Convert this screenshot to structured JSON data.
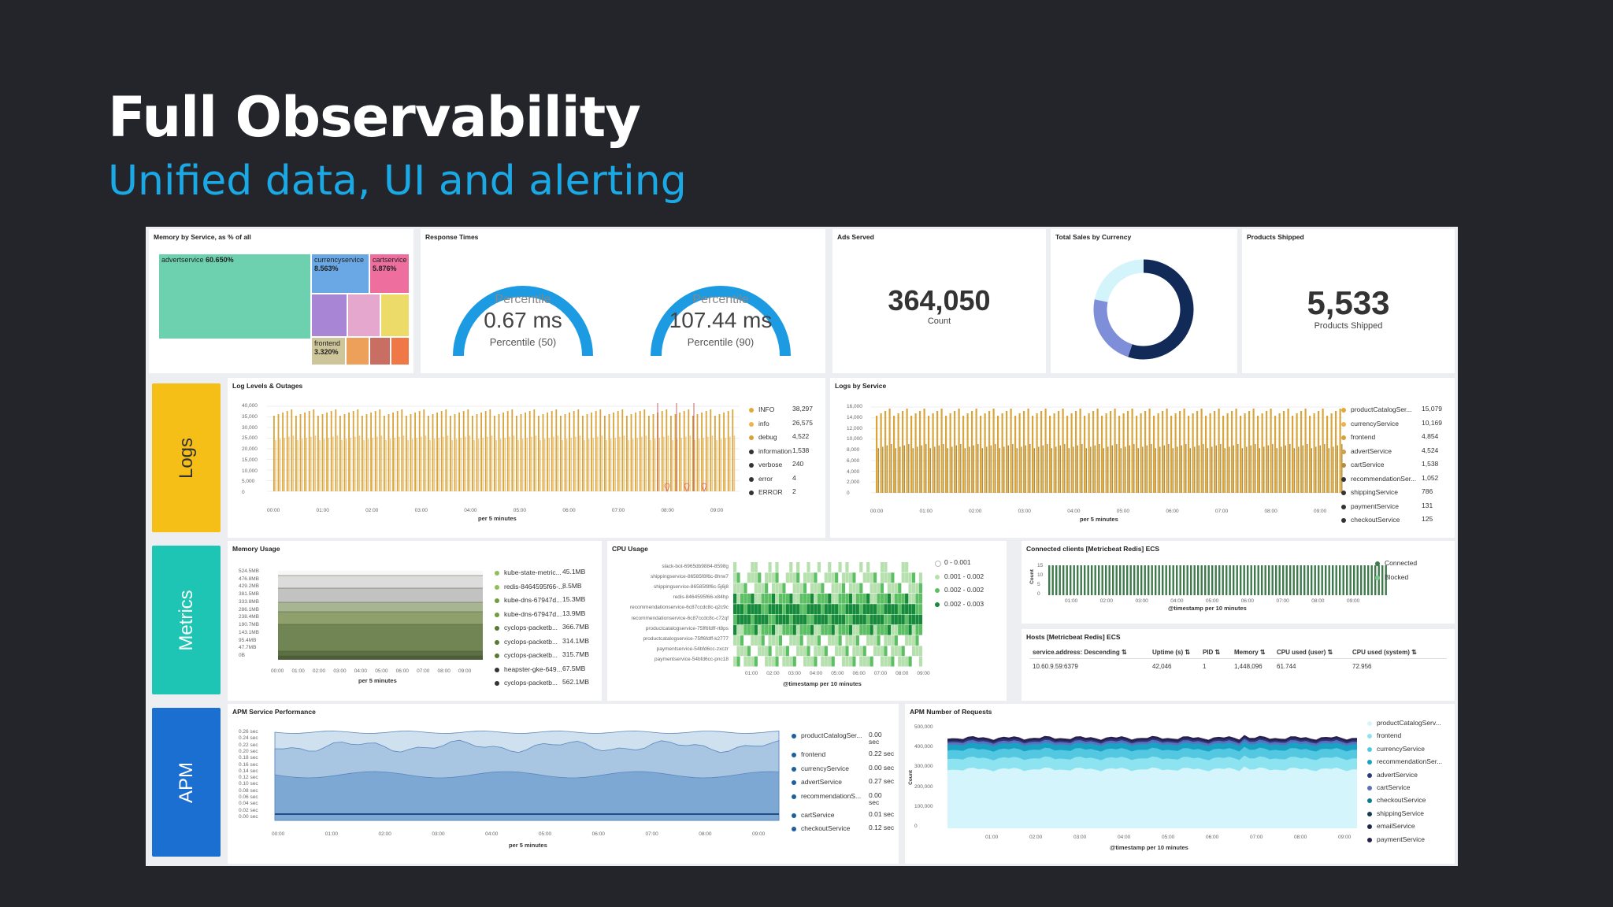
{
  "slide": {
    "title": "Full Observability",
    "subtitle": "Unified data, UI and alerting"
  },
  "sections": {
    "logs": "Logs",
    "metrics": "Metrics",
    "apm": "APM"
  },
  "colors": {
    "logs": "#f5bf18",
    "metrics": "#1ec4b4",
    "apm": "#1a6fd1",
    "gauge": "#1c9be2",
    "accent": "#1ba9e6"
  },
  "memory_by_service": {
    "title": "Memory by Service, as % of all",
    "tiles": [
      {
        "name": "advertservice",
        "value": "60.650%",
        "color": "#6dd1b0"
      },
      {
        "name": "currencyservice",
        "value": "8.563%",
        "color": "#69a8e4"
      },
      {
        "name": "cartservice",
        "value": "5.876%",
        "color": "#ee6f9d"
      },
      {
        "name": "frontend",
        "value": "3.320%",
        "color": "#cfc59a"
      }
    ]
  },
  "response_times": {
    "title": "Response Times",
    "gauges": [
      {
        "label": "Percentile",
        "value": "0.67 ms",
        "sub": "Percentile (50)"
      },
      {
        "label": "Percentile",
        "value": "107.44 ms",
        "sub": "Percentile (90)"
      }
    ]
  },
  "ads_served": {
    "title": "Ads Served",
    "value": "364,050",
    "label": "Count"
  },
  "total_sales": {
    "title": "Total Sales by Currency"
  },
  "products_shipped": {
    "title": "Products Shipped",
    "value": "5,533",
    "label": "Products Shipped"
  },
  "log_levels": {
    "title": "Log Levels & Outages",
    "xlabel": "per 5 minutes",
    "yticks": [
      "40,000",
      "35,000",
      "30,000",
      "25,000",
      "20,000",
      "15,000",
      "10,000",
      "5,000",
      "0"
    ],
    "xticks": [
      "00:00",
      "01:00",
      "02:00",
      "03:00",
      "04:00",
      "05:00",
      "06:00",
      "07:00",
      "08:00",
      "09:00"
    ],
    "legend": [
      {
        "label": "INFO",
        "value": "38,297",
        "color": "#e2a93a"
      },
      {
        "label": "info",
        "value": "26,575",
        "color": "#e8b550"
      },
      {
        "label": "debug",
        "value": "4,522",
        "color": "#d7a13a"
      },
      {
        "label": "information",
        "value": "1,538",
        "color": "#333333"
      },
      {
        "label": "verbose",
        "value": "240",
        "color": "#333333"
      },
      {
        "label": "error",
        "value": "4",
        "color": "#333333"
      },
      {
        "label": "ERROR",
        "value": "2",
        "color": "#333333"
      }
    ]
  },
  "logs_by_service": {
    "title": "Logs by Service",
    "xlabel": "per 5 minutes",
    "yticks": [
      "16,000",
      "14,000",
      "12,000",
      "10,000",
      "8,000",
      "6,000",
      "4,000",
      "2,000",
      "0"
    ],
    "xticks": [
      "00:00",
      "01:00",
      "02:00",
      "03:00",
      "04:00",
      "05:00",
      "06:00",
      "07:00",
      "08:00",
      "09:00"
    ],
    "legend": [
      {
        "label": "productCatalogSer...",
        "value": "15,079",
        "color": "#e2a93a"
      },
      {
        "label": "currencyService",
        "value": "10,169",
        "color": "#e8b550"
      },
      {
        "label": "frontend",
        "value": "4,854",
        "color": "#d7a13a"
      },
      {
        "label": "advertService",
        "value": "4,524",
        "color": "#caa04a"
      },
      {
        "label": "cartService",
        "value": "1,538",
        "color": "#b58c3a"
      },
      {
        "label": "recommendationSer...",
        "value": "1,052",
        "color": "#333333"
      },
      {
        "label": "shippingService",
        "value": "786",
        "color": "#333333"
      },
      {
        "label": "paymentService",
        "value": "131",
        "color": "#333333"
      },
      {
        "label": "checkoutService",
        "value": "125",
        "color": "#333333"
      }
    ]
  },
  "memory_usage": {
    "title": "Memory Usage",
    "xlabel": "per 5 minutes",
    "yticks": [
      "524.5MB",
      "476.8MB",
      "429.2MB",
      "381.5MB",
      "333.8MB",
      "286.1MB",
      "238.4MB",
      "190.7MB",
      "143.1MB",
      "95.4MB",
      "47.7MB",
      "0B"
    ],
    "xticks": [
      "00:00",
      "01:00",
      "02:00",
      "03:00",
      "04:00",
      "05:00",
      "06:00",
      "07:00",
      "08:00",
      "09:00"
    ],
    "legend": [
      {
        "label": "kube-state-metric...",
        "value": "45.1MB",
        "color": "#8fbf5a"
      },
      {
        "label": "redis-8464595f66-...",
        "value": "8.5MB",
        "color": "#8fbf5a"
      },
      {
        "label": "kube-dns-67947d...",
        "value": "15.3MB",
        "color": "#6e9e3e"
      },
      {
        "label": "kube-dns-67947d...",
        "value": "13.9MB",
        "color": "#6e9e3e"
      },
      {
        "label": "cyclops-packetb...",
        "value": "366.7MB",
        "color": "#557a30"
      },
      {
        "label": "cyclops-packetb...",
        "value": "314.1MB",
        "color": "#557a30"
      },
      {
        "label": "cyclops-packetb...",
        "value": "315.7MB",
        "color": "#557a30"
      },
      {
        "label": "heapster-gke-649...",
        "value": "67.5MB",
        "color": "#333333"
      },
      {
        "label": "cyclops-packetb...",
        "value": "562.1MB",
        "color": "#333333"
      }
    ]
  },
  "cpu_usage": {
    "title": "CPU Usage",
    "xlabel": "@timestamp per 10 minutes",
    "rows": [
      "slack-bot-6965db9884-8598g",
      "shippingservice-86585f8f6c-8hrw7",
      "shippingservice-86585f8f6c-5j6j8",
      "redis-8464595f66-x84hp",
      "recommendationservice-6c87ccdc8c-q2c9c",
      "recommendationservice-6c87ccdc8c-c72qf",
      "productcatalogservice-75ff6fdff-rt8ps",
      "productcatalogservice-75ff6fdff-k2777",
      "paymentservice-54bfd6cc-zxczr",
      "paymentservice-54bfd6cc-pnc18"
    ],
    "xticks": [
      "01:00",
      "02:00",
      "03:00",
      "04:00",
      "05:00",
      "06:00",
      "07:00",
      "08:00",
      "09:00"
    ],
    "legend": [
      {
        "label": "0 - 0.001",
        "color": "#ffffff"
      },
      {
        "label": "0.001 - 0.002",
        "color": "#b6e0ae"
      },
      {
        "label": "0.002 - 0.002",
        "color": "#5cbf64"
      },
      {
        "label": "0.002 - 0.003",
        "color": "#168a3a"
      }
    ]
  },
  "connected_clients": {
    "title": "Connected clients [Metricbeat Redis] ECS",
    "xlabel": "@timestamp per 10 minutes",
    "ylabel": "Count",
    "yticks": [
      "15",
      "10",
      "5",
      "0"
    ],
    "xticks": [
      "01:00",
      "02:00",
      "03:00",
      "04:00",
      "05:00",
      "06:00",
      "07:00",
      "08:00",
      "09:00"
    ],
    "legend": [
      {
        "label": "Connected",
        "color": "#3f7a4d"
      },
      {
        "label": "Blocked",
        "color": "#7ccb8f"
      }
    ]
  },
  "hosts": {
    "title": "Hosts [Metricbeat Redis] ECS",
    "headers": [
      "service.address: Descending",
      "Uptime (s)",
      "PID",
      "Memory",
      "CPU used (user)",
      "CPU used (system)"
    ],
    "rows": [
      [
        "10.60.9.59:6379",
        "42,046",
        "1",
        "1,448,096",
        "61.744",
        "72.956"
      ]
    ]
  },
  "apm_perf": {
    "title": "APM Service Performance",
    "xlabel": "per 5 minutes",
    "yticks": [
      "0.26 sec",
      "0.24 sec",
      "0.22 sec",
      "0.20 sec",
      "0.18 sec",
      "0.16 sec",
      "0.14 sec",
      "0.12 sec",
      "0.10 sec",
      "0.08 sec",
      "0.06 sec",
      "0.04 sec",
      "0.02 sec",
      "0.00 sec"
    ],
    "xticks": [
      "00:00",
      "01:00",
      "02:00",
      "03:00",
      "04:00",
      "05:00",
      "06:00",
      "07:00",
      "08:00",
      "09:00"
    ],
    "legend": [
      {
        "label": "productCatalogSer...",
        "value": "0.00\nsec",
        "color": "#1f5fa0"
      },
      {
        "label": "frontend",
        "value": "0.22 sec",
        "color": "#1f5fa0"
      },
      {
        "label": "currencyService",
        "value": "0.00 sec",
        "color": "#1f5fa0"
      },
      {
        "label": "advertService",
        "value": "0.27 sec",
        "color": "#1f5fa0"
      },
      {
        "label": "recommendationS...",
        "value": "0.00\nsec",
        "color": "#1f5fa0"
      },
      {
        "label": "cartService",
        "value": "0.01 sec",
        "color": "#1f5fa0"
      },
      {
        "label": "checkoutService",
        "value": "0.12 sec",
        "color": "#1f5fa0"
      }
    ]
  },
  "apm_requests": {
    "title": "APM Number of Requests",
    "xlabel": "@timestamp per 10 minutes",
    "ylabel": "Count",
    "yticks": [
      "500,000",
      "400,000",
      "300,000",
      "200,000",
      "100,000",
      "0"
    ],
    "xticks": [
      "01:00",
      "02:00",
      "03:00",
      "04:00",
      "05:00",
      "06:00",
      "07:00",
      "08:00",
      "09:00"
    ],
    "legend": [
      {
        "label": "productCatalogServ...",
        "color": "#d4f5fb"
      },
      {
        "label": "frontend",
        "color": "#8ee3f0"
      },
      {
        "label": "currencyService",
        "color": "#53c8e0"
      },
      {
        "label": "recommendationSer...",
        "color": "#1aa2c4"
      },
      {
        "label": "advertService",
        "color": "#2b3b7a"
      },
      {
        "label": "cartService",
        "color": "#5f6fc0"
      },
      {
        "label": "checkoutService",
        "color": "#0d7a8c"
      },
      {
        "label": "shippingService",
        "color": "#143c55"
      },
      {
        "label": "emailService",
        "color": "#1d2a4a"
      },
      {
        "label": "paymentService",
        "color": "#2a2050"
      }
    ]
  }
}
